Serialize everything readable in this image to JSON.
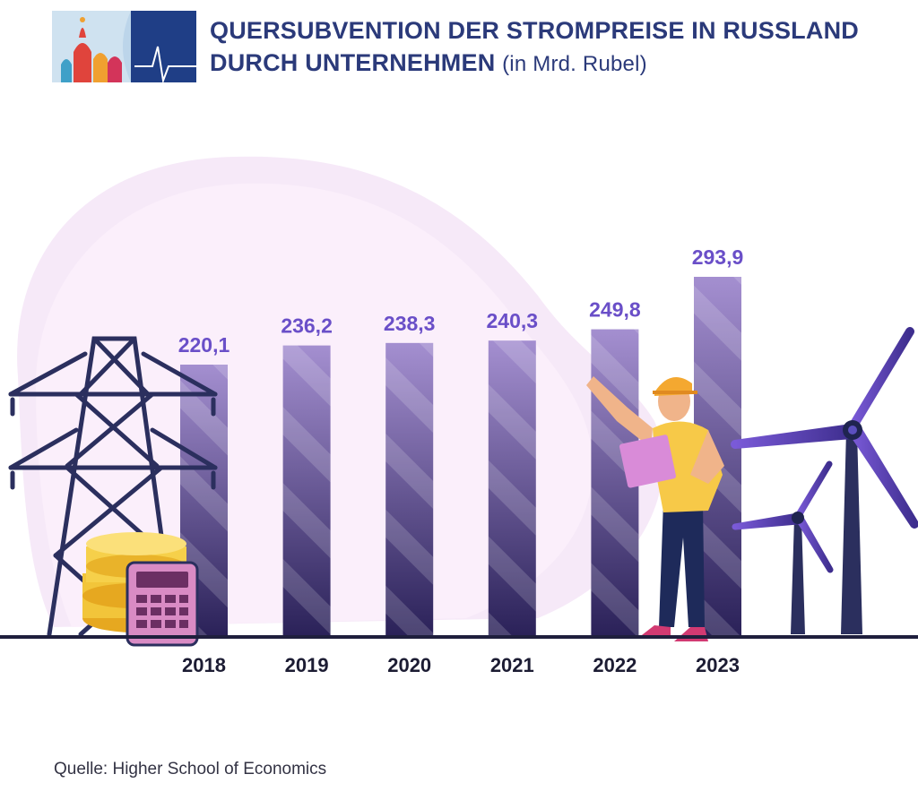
{
  "header": {
    "title_line1": "QUERSUBVENTION DER STROMPREISE IN RUSSLAND",
    "title_line2": "DURCH UNTERNEHMEN",
    "unit": "(in Mrd. Rubel)"
  },
  "source": "Quelle: Higher School of Economics",
  "colors": {
    "title": "#2b3a7a",
    "bar_top": "#a48fd0",
    "bar_bottom": "#2a2158",
    "value_label": "#6a4fc8",
    "axis": "#1f1f3d",
    "year_label": "#1c1c33",
    "blob": "#f6e9f8"
  },
  "chart_data": {
    "type": "bar",
    "categories": [
      "2018",
      "2019",
      "2020",
      "2021",
      "2022",
      "2023"
    ],
    "values": [
      220.1,
      236.2,
      238.3,
      240.3,
      249.8,
      293.9
    ],
    "value_labels": [
      "220,1",
      "236,2",
      "238,3",
      "240,3",
      "249,8",
      "293,9"
    ],
    "title": "QUERSUBVENTION DER STROMPREISE IN RUSSLAND DURCH UNTERNEHMEN (in Mrd. Rubel)",
    "xlabel": "",
    "ylabel": "",
    "grid": false,
    "legend": "none"
  },
  "illustrations": [
    "power-pylon-icon",
    "coins-icon",
    "calculator-icon",
    "engineer-icon",
    "wind-turbine-icon"
  ]
}
